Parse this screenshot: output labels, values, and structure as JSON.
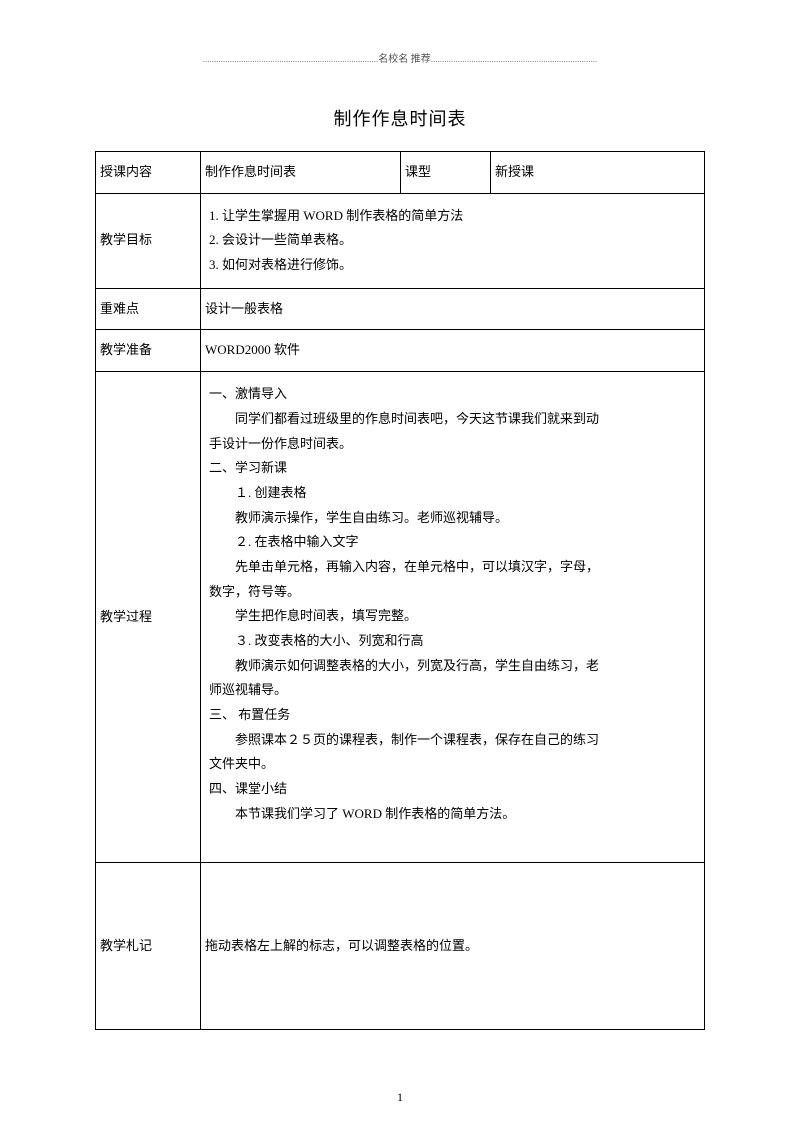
{
  "header": {
    "prefix_dots": "..............................................................................",
    "text": "名校名 推荐",
    "suffix_dots": ".........................................................................."
  },
  "title": "制作作息时间表",
  "row1": {
    "label": "授课内容",
    "val1": "制作作息时间表",
    "label2": "课型",
    "val2": "新授课"
  },
  "row2": {
    "label": "教学目标",
    "line1": "1. 让学生掌握用  WORD 制作表格的简单方法",
    "line2": "2. 会设计一些简单表格。",
    "line3": "3. 如何对表格进行修饰。"
  },
  "row3": {
    "label": "重难点",
    "val": "设计一般表格"
  },
  "row4": {
    "label": "教学准备",
    "val": "WORD2000 软件"
  },
  "process": {
    "label": "教学过程",
    "lines": [
      "一、激情导入",
      "　　同学们都看过班级里的作息时间表吧，今天这节课我们就来到动",
      "手设计一份作息时间表。",
      "二、学习新课",
      "　　１. 创建表格",
      "　　教师演示操作，学生自由练习。老师巡视辅导。",
      "　　２. 在表格中输入文字",
      "　　先单击单元格，再输入内容，在单元格中，可以填汉字，字母，",
      "数字，符号等。",
      "　　学生把作息时间表，填写完整。",
      "　　３. 改变表格的大小、列宽和行高",
      "　　教师演示如何调整表格的大小，列宽及行高，学生自由练习，老",
      "师巡视辅导。",
      "三、 布置任务",
      "　　参照课本２５页的课程表，制作一个课程表，保存在自己的练习",
      "文件夹中。",
      "四、课堂小结",
      "　　本节课我们学习了   WORD 制作表格的简单方法。"
    ]
  },
  "notes": {
    "label": "教学札记",
    "val": "拖动表格左上解的标志，可以调整表格的位置。"
  },
  "pagenum": "1"
}
